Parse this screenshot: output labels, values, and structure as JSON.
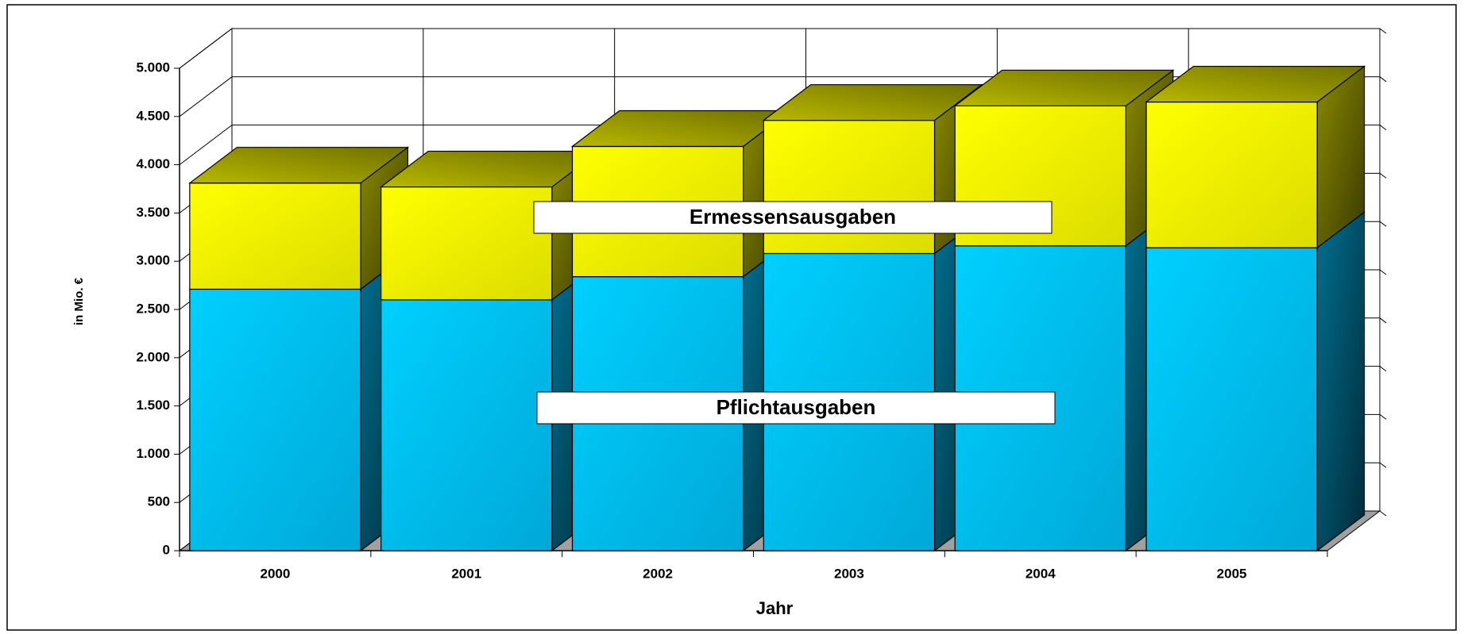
{
  "chart_data": {
    "type": "bar3d_stacked",
    "x_label": "Jahr",
    "y_label": "in Mio. €",
    "categories": [
      "2000",
      "2001",
      "2002",
      "2003",
      "2004",
      "2005"
    ],
    "series": [
      {
        "name": "Pflichtausgaben",
        "color": "#00c8ff",
        "values": [
          2710,
          2600,
          2840,
          3080,
          3160,
          3140
        ]
      },
      {
        "name": "Ermessensausgaben",
        "color": "#ffff00",
        "values": [
          1100,
          1170,
          1350,
          1380,
          1450,
          1510
        ]
      }
    ],
    "ylim": [
      0,
      5000
    ],
    "yticks": [
      0,
      500,
      {
        "value": 1000,
        "label": "1.000"
      },
      {
        "value": 1500,
        "label": "1.500"
      },
      {
        "value": 2000,
        "label": "2.000"
      },
      {
        "value": 2500,
        "label": "2.500"
      },
      {
        "value": 3000,
        "label": "3.000"
      },
      {
        "value": 3500,
        "label": "3.500"
      },
      {
        "value": 4000,
        "label": "4.000"
      },
      {
        "value": 4500,
        "label": "4.500"
      },
      {
        "value": 5000,
        "label": "5.000"
      }
    ],
    "grid": true
  }
}
